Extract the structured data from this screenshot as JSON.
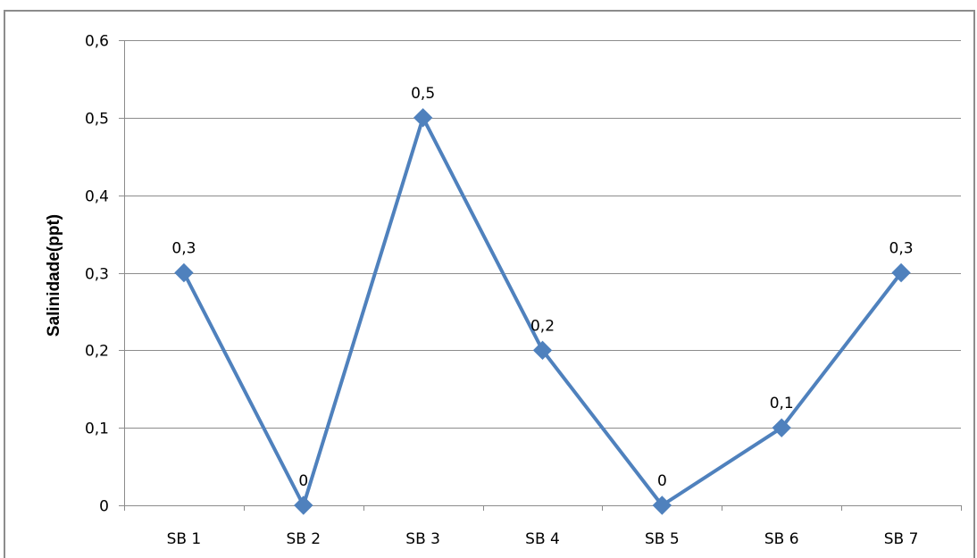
{
  "chart_data": {
    "type": "line",
    "categories": [
      "SB 1",
      "SB 2",
      "SB 3",
      "SB 4",
      "SB 5",
      "SB 6",
      "SB 7"
    ],
    "series": [
      {
        "values": [
          0.3,
          0,
          0.5,
          0.2,
          0,
          0.1,
          0.3
        ],
        "data_labels": [
          "0,3",
          "0",
          "0,5",
          "0,2",
          "0",
          "0,1",
          "0,3"
        ],
        "color": "#4f81bd",
        "marker": "diamond"
      }
    ],
    "title": "",
    "xlabel": "",
    "ylabel": "Salinidade(ppt)",
    "ylim": [
      0,
      0.6
    ],
    "yticks": [
      0,
      0.1,
      0.2,
      0.3,
      0.4,
      0.5,
      0.6
    ],
    "ytick_labels": [
      "0",
      "0,1",
      "0,2",
      "0,3",
      "0,4",
      "0,5",
      "0,6"
    ],
    "grid": true,
    "legend": "none",
    "colors": {
      "gridline": "#8c8c8c",
      "frame": "#8c8c8c"
    }
  }
}
